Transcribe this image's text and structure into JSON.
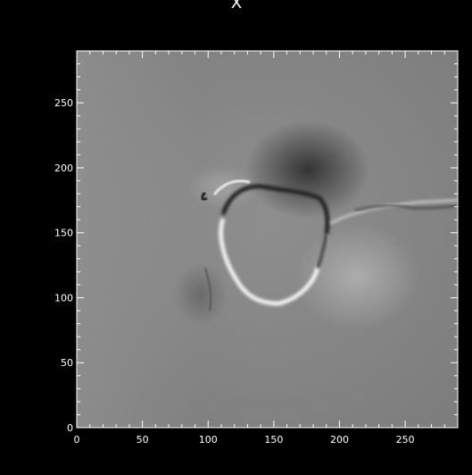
{
  "colors": {
    "background": "#000000",
    "axes": "#ffffff",
    "field_mid": "#8a8a8a",
    "bright": "#f2f2f2",
    "dark": "#1e1e1e"
  },
  "chart_data": {
    "type": "heatmap",
    "title": "X",
    "xlabel": "",
    "ylabel": "",
    "xlim": [
      0,
      290
    ],
    "ylim": [
      0,
      290
    ],
    "x_ticks": [
      0,
      50,
      100,
      150,
      200,
      250
    ],
    "y_ticks": [
      0,
      50,
      100,
      150,
      200,
      250
    ],
    "x_tick_labels": [
      "0",
      "50",
      "100",
      "150",
      "200",
      "250"
    ],
    "y_tick_labels": [
      "0",
      "50",
      "100",
      "150",
      "200",
      "250"
    ],
    "minor_tick_step": 10,
    "colormap": "grayscale",
    "grid": false
  }
}
